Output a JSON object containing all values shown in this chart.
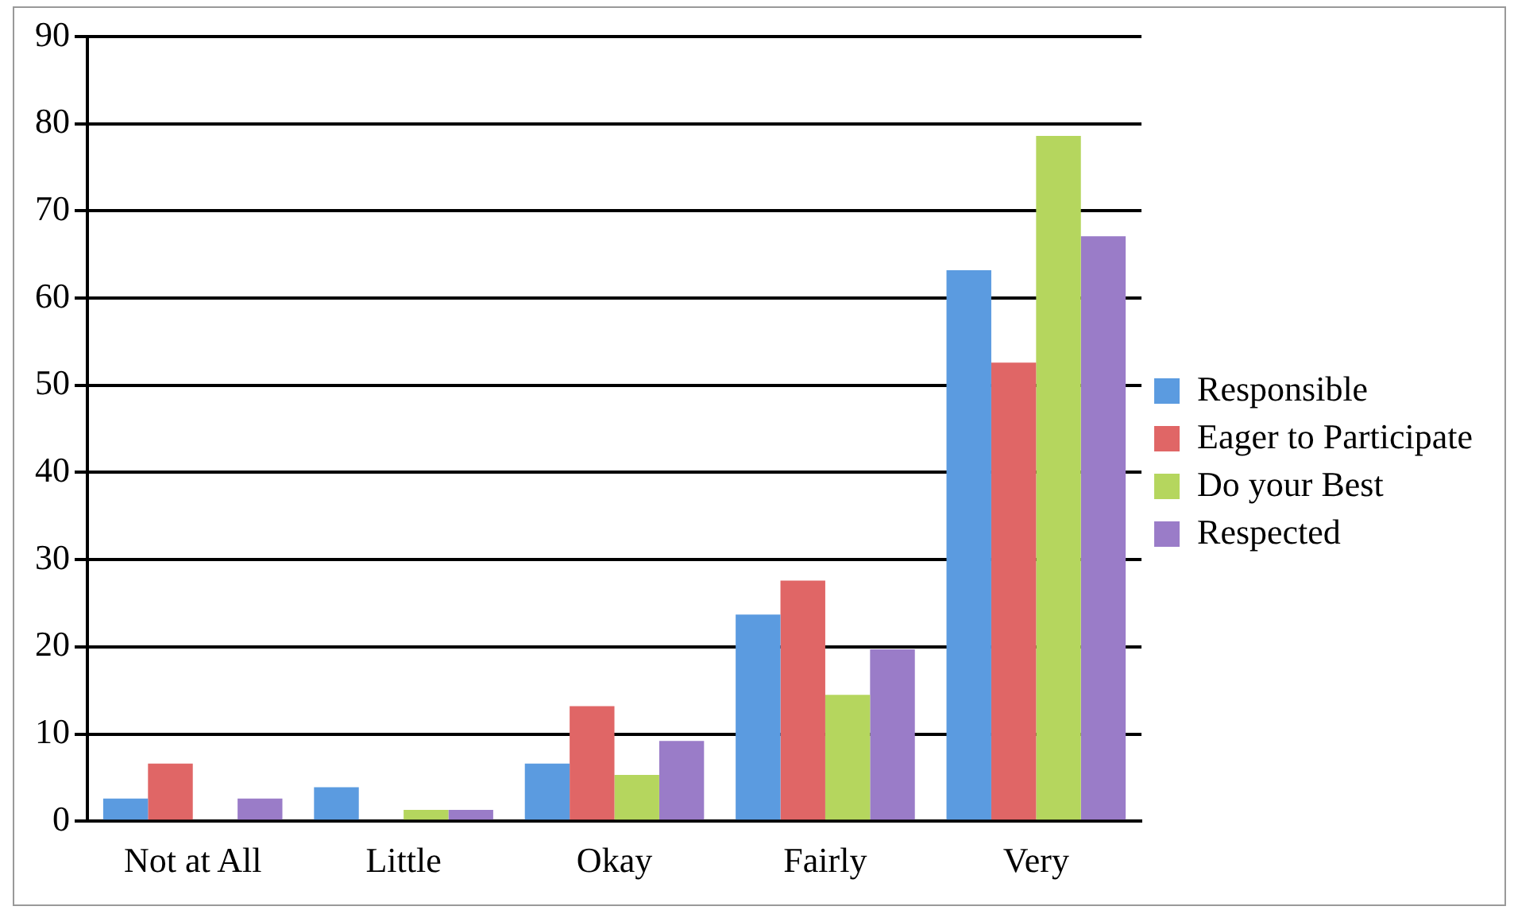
{
  "chart_data": {
    "type": "bar",
    "categories": [
      "Not at All",
      "Little",
      "Okay",
      "Fairly",
      "Very"
    ],
    "series": [
      {
        "name": "Responsible",
        "color": "#5b9be0",
        "values": [
          2.6,
          3.9,
          6.6,
          23.7,
          63.2
        ]
      },
      {
        "name": "Eager to Participate",
        "color": "#e06666",
        "values": [
          6.6,
          0,
          13.2,
          27.6,
          52.6
        ]
      },
      {
        "name": "Do your Best",
        "color": "#b5d65e",
        "values": [
          0,
          1.3,
          5.3,
          14.5,
          78.6
        ]
      },
      {
        "name": "Respected",
        "color": "#9a7cc8",
        "values": [
          2.6,
          1.3,
          9.2,
          19.7,
          67.1
        ]
      }
    ],
    "ylim": [
      0,
      90
    ],
    "yticks": [
      0,
      10,
      20,
      30,
      40,
      50,
      60,
      70,
      80,
      90
    ],
    "grid": "y",
    "legend": "right"
  }
}
